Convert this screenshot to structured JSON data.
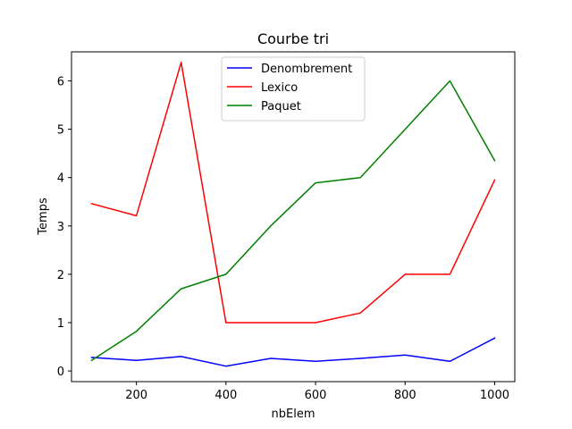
{
  "chart_data": {
    "type": "line",
    "title": "Courbe tri",
    "xlabel": "nbElem",
    "ylabel": "Temps",
    "xlim": [
      55,
      1045
    ],
    "ylim": [
      -0.22,
      6.6
    ],
    "xticks": [
      200,
      400,
      600,
      800,
      1000
    ],
    "yticks": [
      0,
      1,
      2,
      3,
      4,
      5,
      6
    ],
    "grid": false,
    "legend_position": "top-center",
    "x": [
      100,
      200,
      300,
      400,
      500,
      600,
      700,
      800,
      900,
      1000
    ],
    "series": [
      {
        "name": "Denombrement",
        "color": "#0000ff",
        "values": [
          0.28,
          0.22,
          0.3,
          0.1,
          0.26,
          0.2,
          0.26,
          0.33,
          0.2,
          0.68
        ]
      },
      {
        "name": "Lexico",
        "color": "#ff0000",
        "values": [
          3.46,
          3.21,
          6.38,
          1.0,
          1.0,
          1.0,
          1.2,
          2.0,
          2.0,
          3.95
        ]
      },
      {
        "name": "Paquet",
        "color": "#008000",
        "values": [
          0.22,
          0.82,
          1.7,
          2.0,
          3.0,
          3.89,
          4.0,
          5.0,
          6.0,
          4.35
        ]
      }
    ]
  }
}
